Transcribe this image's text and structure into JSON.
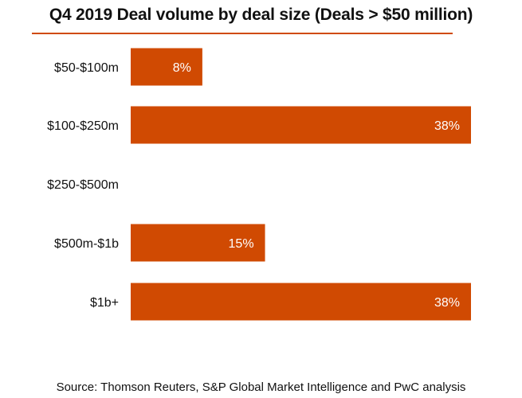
{
  "colors": {
    "bar": "#D04A02",
    "rule": "#D04A02",
    "label_on_bar": "#ffffff",
    "text": "#111111"
  },
  "chart_data": {
    "type": "bar",
    "orientation": "horizontal",
    "title": "Q4 2019 Deal volume by deal size (Deals > $50 million)",
    "xlabel": "",
    "ylabel": "",
    "categories": [
      "$50-$100m",
      "$100-$250m",
      "$250-$500m",
      "$500m-$1b",
      "$1b+"
    ],
    "values": [
      8,
      38,
      0,
      15,
      38
    ],
    "data_labels": [
      "8%",
      "38%",
      "",
      "15%",
      "38%"
    ],
    "xlim": [
      0,
      38
    ],
    "grid": false,
    "legend": "none",
    "source": "Source: Thomson Reuters, S&P Global Market Intelligence and PwC analysis"
  }
}
